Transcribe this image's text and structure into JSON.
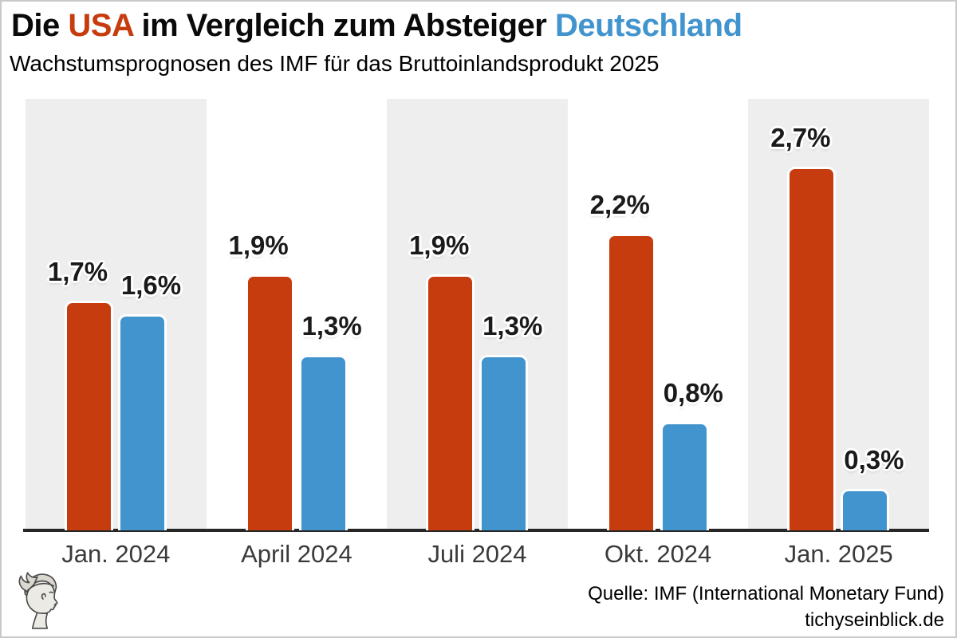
{
  "header": {
    "title_part1": "Die",
    "title_usa": "USA",
    "title_part2": "im Vergleich zum Absteiger",
    "title_deutschland": "Deutschland",
    "subtitle": "Wachstumsprognosen des IMF für das Bruttoinlandsprodukt 2025"
  },
  "colors": {
    "usa": "#c63c0e",
    "deutschland": "#4294ce",
    "stripe": "#eeeeee",
    "axis": "#262626",
    "category_text": "#3a3a3a"
  },
  "chart_data": {
    "type": "bar",
    "categories": [
      "Jan. 2024",
      "April 2024",
      "Juli 2024",
      "Okt. 2024",
      "Jan. 2025"
    ],
    "series": [
      {
        "name": "USA",
        "color": "#c63c0e",
        "values": [
          1.7,
          1.9,
          1.9,
          2.2,
          2.7
        ],
        "labels": [
          "1,7%",
          "1,9%",
          "1,9%",
          "2,2%",
          "2,7%"
        ]
      },
      {
        "name": "Deutschland",
        "color": "#4294ce",
        "values": [
          1.6,
          1.3,
          1.3,
          0.8,
          0.3
        ],
        "labels": [
          "1,6%",
          "1,3%",
          "1,3%",
          "0,8%",
          "0,3%"
        ]
      }
    ],
    "unit": "%",
    "ylim": [
      0,
      3.22
    ],
    "grid": false,
    "legend": "none (series colors referenced by title words USA / Deutschland)",
    "background_stripes": "alternating light gray behind groups 1, 3, 5"
  },
  "footer": {
    "source_line1": "Quelle: IMF (International Monetary Fund)",
    "source_line2": "tichyseinblick.de",
    "logo": "hermes-profile-logo"
  }
}
